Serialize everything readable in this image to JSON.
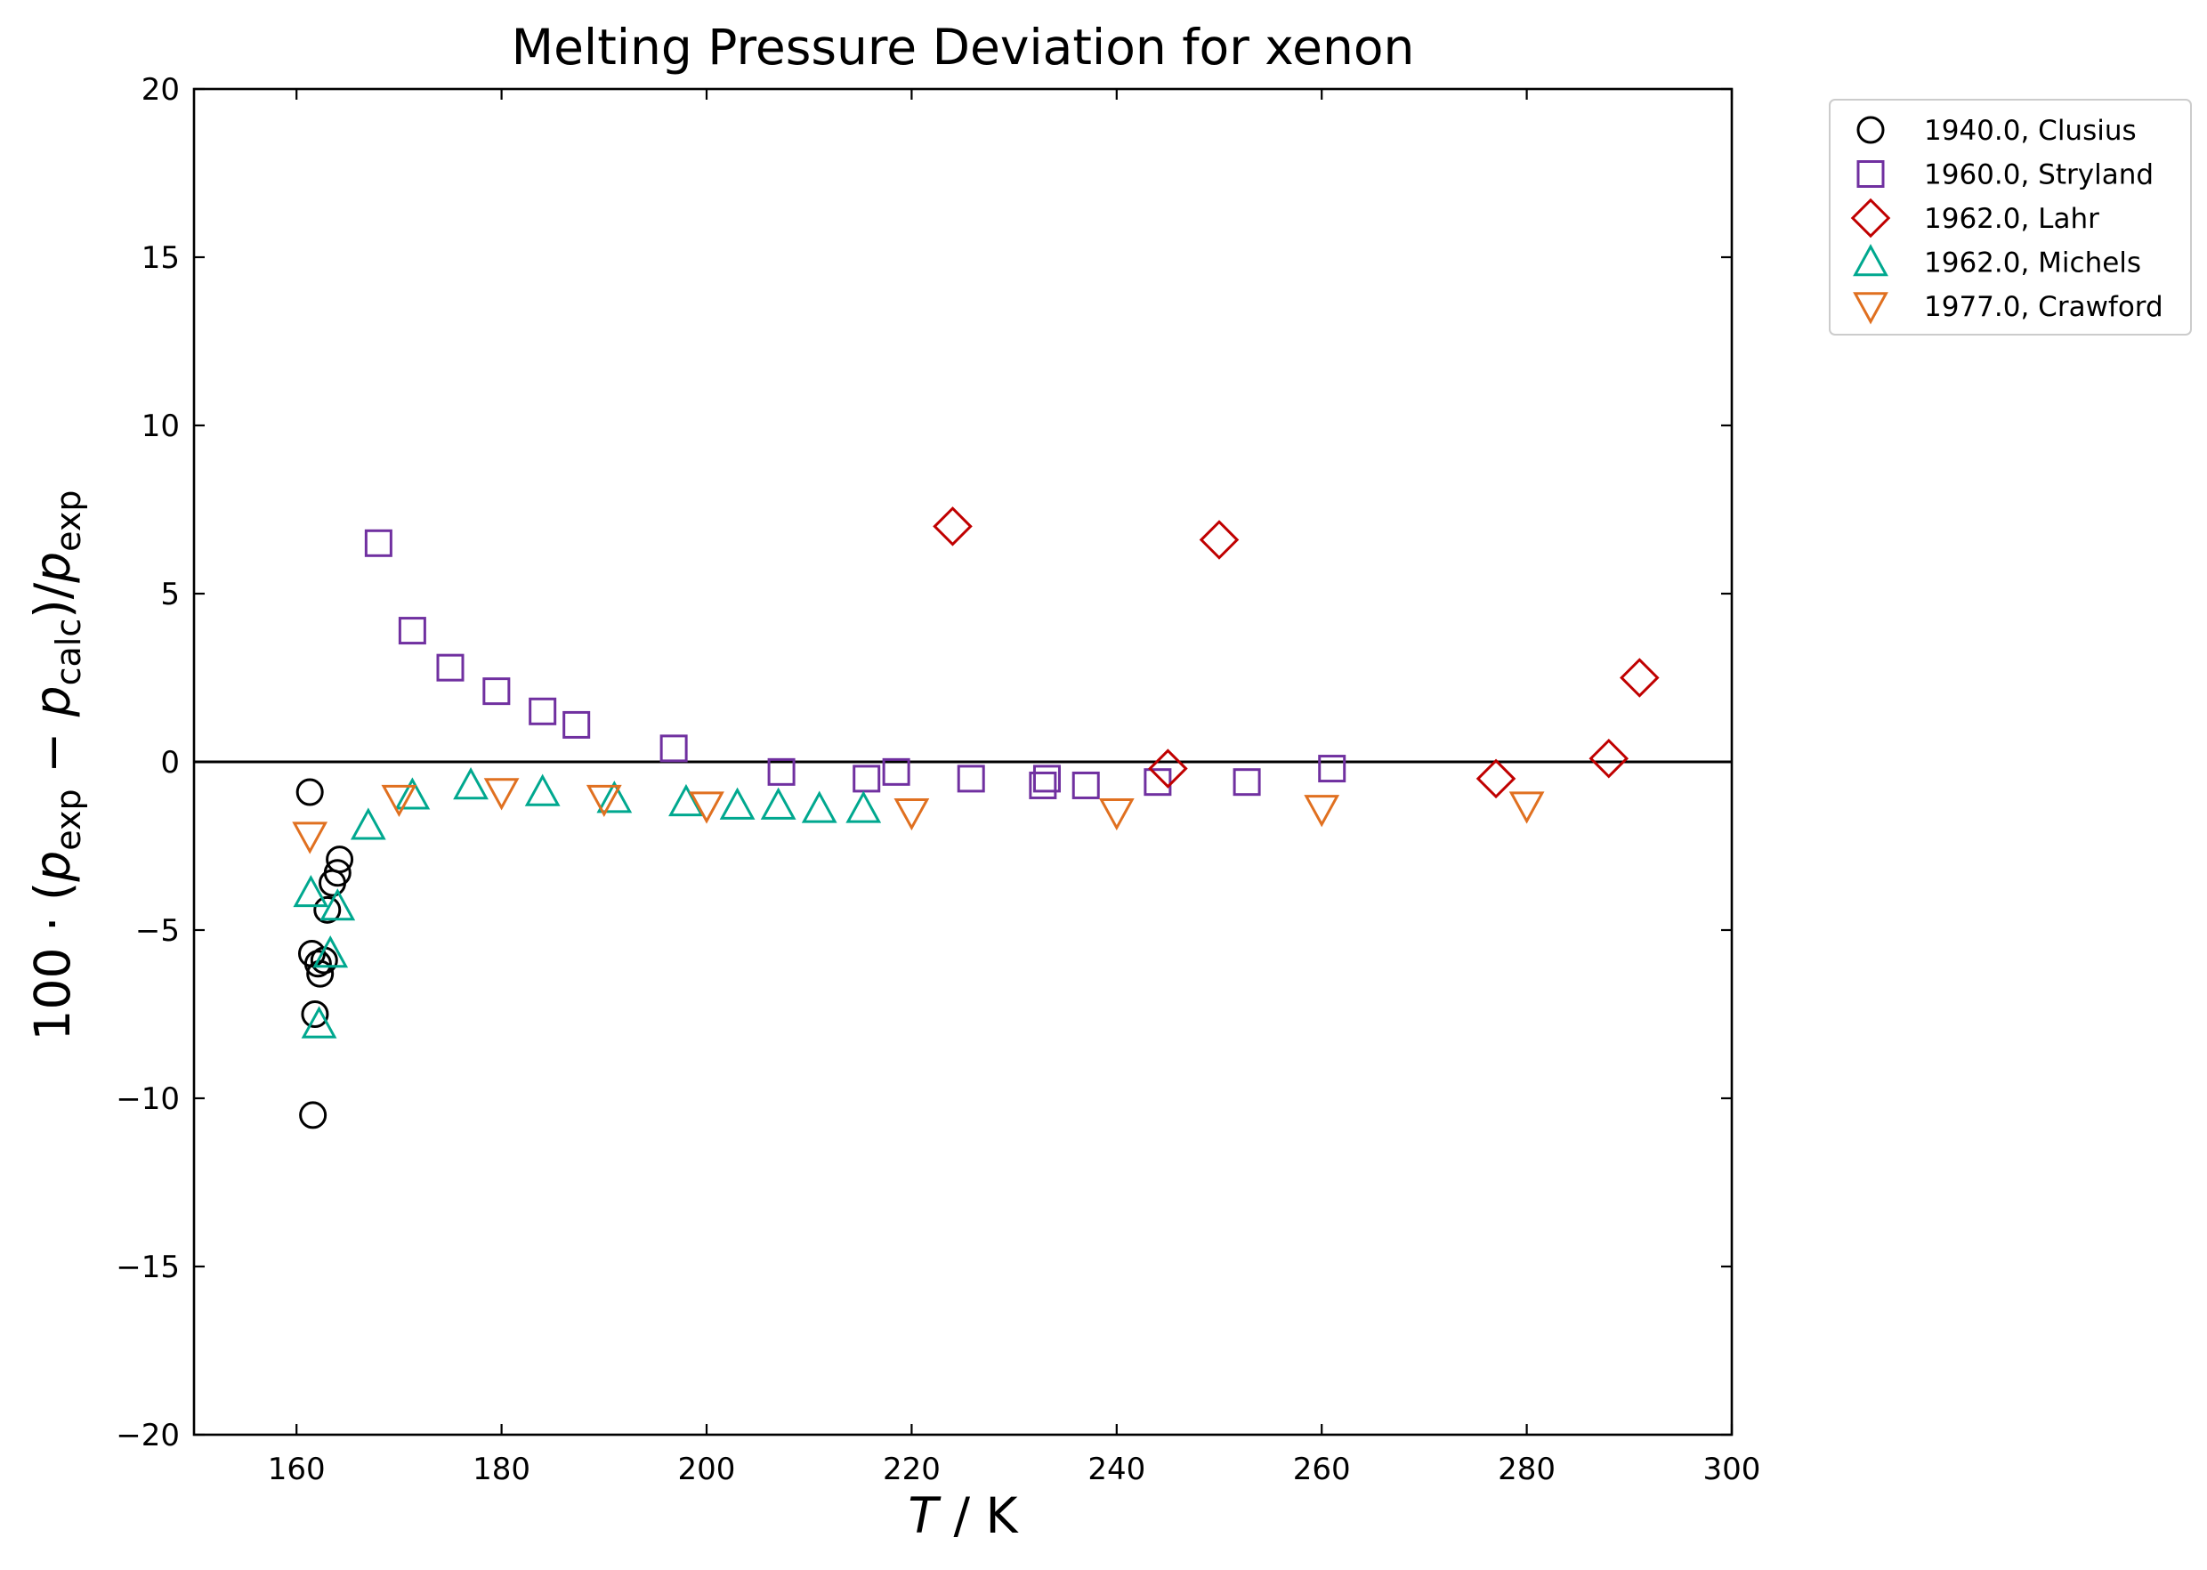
{
  "chart_data": {
    "type": "scatter",
    "title": "Melting Pressure Deviation for xenon",
    "xlabel": {
      "italic": "T",
      "rest": " / K"
    },
    "ylabel": "100 · (p_exp − p_calc)/p_exp",
    "xlim": [
      150,
      300
    ],
    "ylim": [
      -20,
      20
    ],
    "xticks": [
      160,
      180,
      200,
      220,
      240,
      260,
      280,
      300
    ],
    "yticks": [
      -20,
      -15,
      -10,
      -5,
      0,
      5,
      10,
      15,
      20
    ],
    "ytick_labels": [
      "−20",
      "−15",
      "−10",
      "−5",
      "0",
      "5",
      "10",
      "15",
      "20"
    ],
    "zero_line": true,
    "grid": false,
    "legend_position": "outside top-right",
    "series": [
      {
        "name": "1940.0, Clusius",
        "marker": "circle",
        "color": "#000000",
        "points": [
          [
            161.3,
            -0.9
          ],
          [
            161.5,
            -5.7
          ],
          [
            161.6,
            -10.5
          ],
          [
            161.8,
            -7.5
          ],
          [
            162.1,
            -6.0
          ],
          [
            162.3,
            -6.3
          ],
          [
            162.7,
            -5.9
          ],
          [
            163.0,
            -4.4
          ],
          [
            163.5,
            -3.6
          ],
          [
            164.0,
            -3.3
          ],
          [
            164.2,
            -2.9
          ]
        ]
      },
      {
        "name": "1960.0, Stryland",
        "marker": "square",
        "color": "#7030a0",
        "points": [
          [
            168.0,
            6.5
          ],
          [
            171.3,
            3.9
          ],
          [
            175.0,
            2.8
          ],
          [
            179.5,
            2.1
          ],
          [
            184.0,
            1.5
          ],
          [
            187.3,
            1.1
          ],
          [
            196.8,
            0.4
          ],
          [
            207.3,
            -0.3
          ],
          [
            215.6,
            -0.5
          ],
          [
            218.5,
            -0.3
          ],
          [
            225.8,
            -0.5
          ],
          [
            232.8,
            -0.7
          ],
          [
            233.2,
            -0.5
          ],
          [
            237.0,
            -0.7
          ],
          [
            244.0,
            -0.6
          ],
          [
            252.7,
            -0.6
          ],
          [
            261.0,
            -0.2
          ]
        ]
      },
      {
        "name": "1962.0, Lahr",
        "marker": "diamond",
        "color": "#c00000",
        "points": [
          [
            224.0,
            7.0
          ],
          [
            245.0,
            -0.2
          ],
          [
            250.0,
            6.6
          ],
          [
            277.0,
            -0.5
          ],
          [
            288.0,
            0.1
          ],
          [
            291.0,
            2.5
          ]
        ]
      },
      {
        "name": "1962.0, Michels",
        "marker": "triangle-up",
        "color": "#00a88f",
        "points": [
          [
            161.4,
            -3.9
          ],
          [
            162.2,
            -7.8
          ],
          [
            163.3,
            -5.7
          ],
          [
            164.0,
            -4.3
          ],
          [
            167.0,
            -1.9
          ],
          [
            171.3,
            -1.0
          ],
          [
            177.0,
            -0.7
          ],
          [
            184.0,
            -0.9
          ],
          [
            191.0,
            -1.1
          ],
          [
            198.0,
            -1.2
          ],
          [
            203.0,
            -1.3
          ],
          [
            207.0,
            -1.3
          ],
          [
            211.0,
            -1.4
          ],
          [
            215.3,
            -1.4
          ]
        ]
      },
      {
        "name": "1977.0, Crawford",
        "marker": "triangle-down",
        "color": "#e07020",
        "points": [
          [
            161.3,
            -2.2
          ],
          [
            170.0,
            -1.1
          ],
          [
            180.0,
            -0.9
          ],
          [
            190.0,
            -1.1
          ],
          [
            200.0,
            -1.3
          ],
          [
            220.0,
            -1.5
          ],
          [
            240.0,
            -1.5
          ],
          [
            260.0,
            -1.4
          ],
          [
            280.0,
            -1.3
          ]
        ]
      }
    ]
  }
}
